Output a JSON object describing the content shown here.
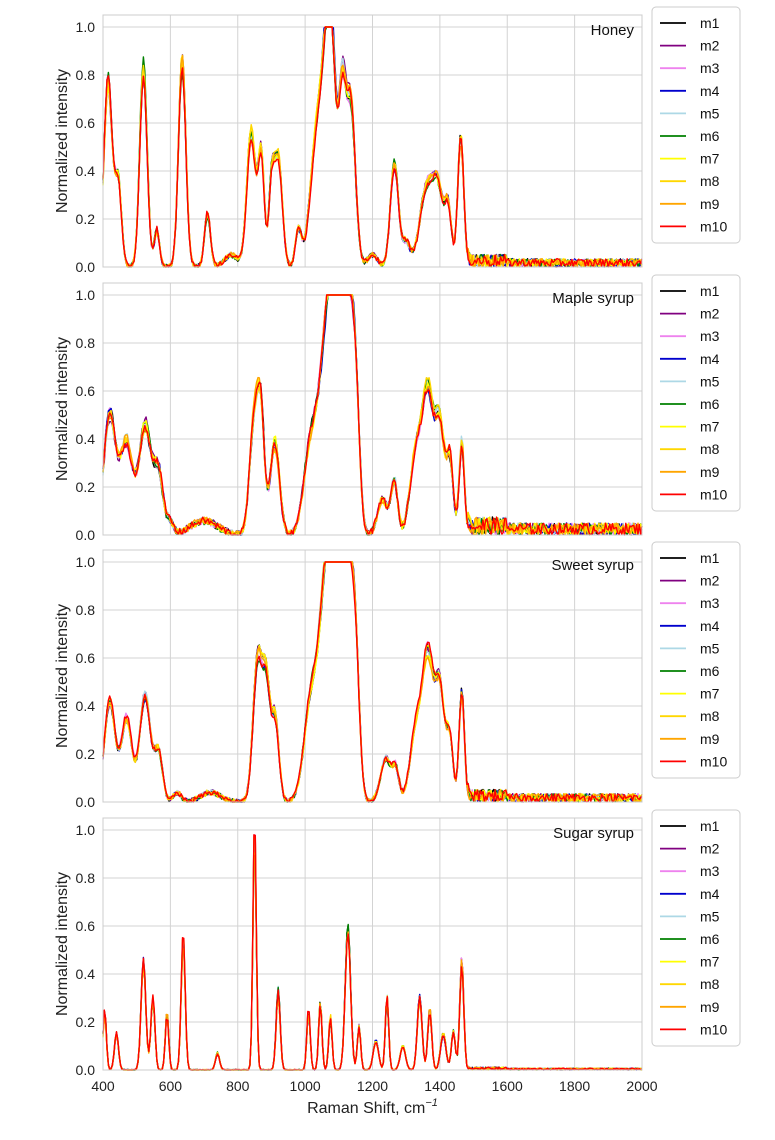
{
  "chart_data": [
    {
      "type": "line",
      "title": "Honey",
      "ylabel": "Normalized intensity",
      "xlim": [
        400,
        2000
      ],
      "ylim": [
        0,
        1.05
      ],
      "yticks": [
        "0.0",
        "0.2",
        "0.4",
        "0.6",
        "0.8",
        "1.0"
      ],
      "legend": [
        "m1",
        "m2",
        "m3",
        "m4",
        "m5",
        "m6",
        "m7",
        "m8",
        "m9",
        "m10"
      ],
      "peaks": [
        [
          415,
          0.78,
          12
        ],
        [
          445,
          0.35,
          10
        ],
        [
          520,
          0.82,
          11
        ],
        [
          560,
          0.15,
          8
        ],
        [
          635,
          0.86,
          11
        ],
        [
          710,
          0.22,
          9
        ],
        [
          780,
          0.05,
          20
        ],
        [
          840,
          0.55,
          13
        ],
        [
          870,
          0.45,
          9
        ],
        [
          900,
          0.3,
          8
        ],
        [
          920,
          0.45,
          12
        ],
        [
          980,
          0.15,
          9
        ],
        [
          1040,
          0.6,
          22
        ],
        [
          1075,
          0.98,
          16
        ],
        [
          1110,
          0.6,
          10
        ],
        [
          1135,
          0.68,
          14
        ],
        [
          1200,
          0.05,
          15
        ],
        [
          1265,
          0.42,
          12
        ],
        [
          1300,
          0.1,
          12
        ],
        [
          1360,
          0.32,
          20
        ],
        [
          1395,
          0.3,
          16
        ],
        [
          1425,
          0.22,
          10
        ],
        [
          1462,
          0.54,
          9
        ]
      ],
      "noise": 0.035,
      "series": [
        {
          "name": "m1",
          "color": "#000000"
        },
        {
          "name": "m2",
          "color": "#800080"
        },
        {
          "name": "m3",
          "color": "#ee82ee"
        },
        {
          "name": "m4",
          "color": "#0000cd"
        },
        {
          "name": "m5",
          "color": "#add8e6"
        },
        {
          "name": "m6",
          "color": "#008000"
        },
        {
          "name": "m7",
          "color": "#ffff00"
        },
        {
          "name": "m8",
          "color": "#ffd700"
        },
        {
          "name": "m9",
          "color": "#ffa500"
        },
        {
          "name": "m10",
          "color": "#ff0000"
        }
      ]
    },
    {
      "type": "line",
      "title": "Maple syrup",
      "ylabel": "Normalized intensity",
      "xlim": [
        400,
        2000
      ],
      "ylim": [
        0,
        1.05
      ],
      "yticks": [
        "0.0",
        "0.2",
        "0.4",
        "0.6",
        "0.8",
        "1.0"
      ],
      "legend": [
        "m1",
        "m2",
        "m3",
        "m4",
        "m5",
        "m6",
        "m7",
        "m8",
        "m9",
        "m10"
      ],
      "peaks": [
        [
          420,
          0.5,
          18
        ],
        [
          470,
          0.38,
          18
        ],
        [
          525,
          0.45,
          18
        ],
        [
          565,
          0.25,
          14
        ],
        [
          600,
          0.05,
          10
        ],
        [
          700,
          0.06,
          40
        ],
        [
          850,
          0.5,
          14
        ],
        [
          870,
          0.4,
          10
        ],
        [
          910,
          0.38,
          14
        ],
        [
          1020,
          0.4,
          22
        ],
        [
          1060,
          0.6,
          18
        ],
        [
          1090,
          0.95,
          18
        ],
        [
          1125,
          0.95,
          16
        ],
        [
          1150,
          0.5,
          12
        ],
        [
          1230,
          0.15,
          15
        ],
        [
          1265,
          0.22,
          10
        ],
        [
          1330,
          0.35,
          18
        ],
        [
          1365,
          0.55,
          16
        ],
        [
          1400,
          0.45,
          14
        ],
        [
          1430,
          0.3,
          10
        ],
        [
          1465,
          0.38,
          8
        ]
      ],
      "noise": 0.05,
      "series": [
        {
          "name": "m1",
          "color": "#000000"
        },
        {
          "name": "m2",
          "color": "#800080"
        },
        {
          "name": "m3",
          "color": "#ee82ee"
        },
        {
          "name": "m4",
          "color": "#0000cd"
        },
        {
          "name": "m5",
          "color": "#add8e6"
        },
        {
          "name": "m6",
          "color": "#008000"
        },
        {
          "name": "m7",
          "color": "#ffff00"
        },
        {
          "name": "m8",
          "color": "#ffd700"
        },
        {
          "name": "m9",
          "color": "#ffa500"
        },
        {
          "name": "m10",
          "color": "#ff0000"
        }
      ]
    },
    {
      "type": "line",
      "title": "Sweet syrup",
      "ylabel": "Normalized intensity",
      "xlim": [
        400,
        2000
      ],
      "ylim": [
        0,
        1.05
      ],
      "yticks": [
        "0.0",
        "0.2",
        "0.4",
        "0.6",
        "0.8",
        "1.0"
      ],
      "legend": [
        "m1",
        "m2",
        "m3",
        "m4",
        "m5",
        "m6",
        "m7",
        "m8",
        "m9",
        "m10"
      ],
      "peaks": [
        [
          420,
          0.42,
          16
        ],
        [
          470,
          0.35,
          16
        ],
        [
          525,
          0.45,
          16
        ],
        [
          565,
          0.2,
          12
        ],
        [
          620,
          0.04,
          12
        ],
        [
          720,
          0.04,
          30
        ],
        [
          860,
          0.6,
          14
        ],
        [
          885,
          0.4,
          10
        ],
        [
          910,
          0.35,
          12
        ],
        [
          1020,
          0.45,
          22
        ],
        [
          1060,
          0.72,
          18
        ],
        [
          1090,
          0.95,
          18
        ],
        [
          1125,
          0.97,
          16
        ],
        [
          1150,
          0.5,
          12
        ],
        [
          1240,
          0.18,
          16
        ],
        [
          1270,
          0.12,
          10
        ],
        [
          1330,
          0.3,
          18
        ],
        [
          1365,
          0.57,
          16
        ],
        [
          1400,
          0.45,
          14
        ],
        [
          1430,
          0.25,
          10
        ],
        [
          1465,
          0.45,
          8
        ]
      ],
      "noise": 0.035,
      "series": [
        {
          "name": "m1",
          "color": "#000000"
        },
        {
          "name": "m2",
          "color": "#800080"
        },
        {
          "name": "m3",
          "color": "#ee82ee"
        },
        {
          "name": "m4",
          "color": "#0000cd"
        },
        {
          "name": "m5",
          "color": "#add8e6"
        },
        {
          "name": "m6",
          "color": "#008000"
        },
        {
          "name": "m7",
          "color": "#ffff00"
        },
        {
          "name": "m8",
          "color": "#ffd700"
        },
        {
          "name": "m9",
          "color": "#ffa500"
        },
        {
          "name": "m10",
          "color": "#ff0000"
        }
      ]
    },
    {
      "type": "line",
      "title": "Sugar syrup",
      "ylabel": "Normalized intensity",
      "xlabel": "Raman Shift, cm",
      "xlabel_superscript": "−1",
      "xlim": [
        400,
        2000
      ],
      "ylim": [
        0,
        1.05
      ],
      "xticks": [
        "400",
        "600",
        "800",
        "1000",
        "1200",
        "1400",
        "1600",
        "1800",
        "2000"
      ],
      "yticks": [
        "0.0",
        "0.2",
        "0.4",
        "0.6",
        "0.8",
        "1.0"
      ],
      "legend": [
        "m1",
        "m2",
        "m3",
        "m4",
        "m5",
        "m6",
        "m7",
        "m8",
        "m9",
        "m10"
      ],
      "peaks": [
        [
          405,
          0.24,
          5
        ],
        [
          440,
          0.15,
          6
        ],
        [
          520,
          0.45,
          7
        ],
        [
          548,
          0.3,
          6
        ],
        [
          590,
          0.24,
          5
        ],
        [
          638,
          0.55,
          6
        ],
        [
          740,
          0.07,
          6
        ],
        [
          850,
          1.0,
          5
        ],
        [
          920,
          0.33,
          6
        ],
        [
          1010,
          0.25,
          5
        ],
        [
          1045,
          0.28,
          5
        ],
        [
          1075,
          0.22,
          5
        ],
        [
          1127,
          0.58,
          8
        ],
        [
          1160,
          0.18,
          5
        ],
        [
          1210,
          0.12,
          8
        ],
        [
          1243,
          0.3,
          5
        ],
        [
          1290,
          0.1,
          8
        ],
        [
          1340,
          0.3,
          7
        ],
        [
          1370,
          0.25,
          6
        ],
        [
          1410,
          0.15,
          8
        ],
        [
          1440,
          0.16,
          6
        ],
        [
          1465,
          0.45,
          6
        ]
      ],
      "noise": 0.008,
      "series": [
        {
          "name": "m1",
          "color": "#000000"
        },
        {
          "name": "m2",
          "color": "#800080"
        },
        {
          "name": "m3",
          "color": "#ee82ee"
        },
        {
          "name": "m4",
          "color": "#0000cd"
        },
        {
          "name": "m5",
          "color": "#add8e6"
        },
        {
          "name": "m6",
          "color": "#008000"
        },
        {
          "name": "m7",
          "color": "#ffff00"
        },
        {
          "name": "m8",
          "color": "#ffd700"
        },
        {
          "name": "m9",
          "color": "#ffa500"
        },
        {
          "name": "m10",
          "color": "#ff0000"
        }
      ]
    }
  ]
}
